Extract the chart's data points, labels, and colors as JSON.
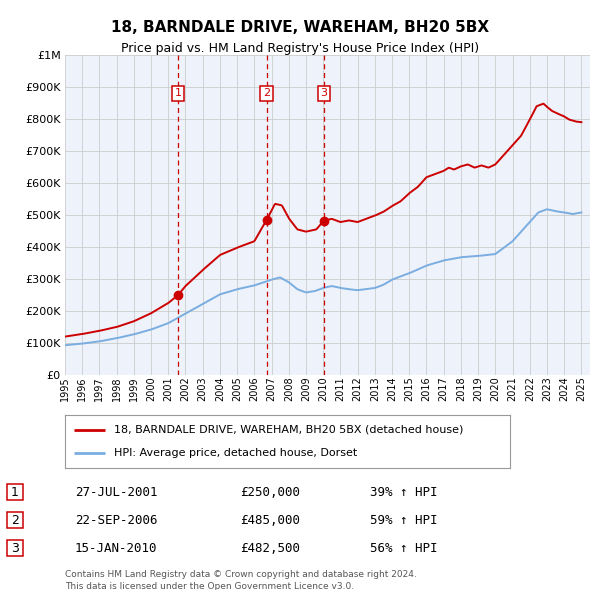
{
  "title": "18, BARNDALE DRIVE, WAREHAM, BH20 5BX",
  "subtitle": "Price paid vs. HM Land Registry's House Price Index (HPI)",
  "legend_line1": "18, BARNDALE DRIVE, WAREHAM, BH20 5BX (detached house)",
  "legend_line2": "HPI: Average price, detached house, Dorset",
  "footnote1": "Contains HM Land Registry data © Crown copyright and database right 2024.",
  "footnote2": "This data is licensed under the Open Government Licence v3.0.",
  "transactions": [
    {
      "num": 1,
      "date": "27-JUL-2001",
      "price": "£250,000",
      "pct": "39% ↑ HPI",
      "year": 2001.57
    },
    {
      "num": 2,
      "date": "22-SEP-2006",
      "price": "£485,000",
      "pct": "59% ↑ HPI",
      "year": 2006.72
    },
    {
      "num": 3,
      "date": "15-JAN-2010",
      "price": "£482,500",
      "pct": "56% ↑ HPI",
      "year": 2010.04
    }
  ],
  "transaction_values": [
    250000,
    485000,
    482500
  ],
  "red_line_color": "#cc0000",
  "blue_line_color": "#7aade0",
  "vline_color": "#cc0000",
  "grid_color": "#cccccc",
  "plot_bg_color": "#eef2fb",
  "ylim": [
    0,
    1000000
  ],
  "yticks": [
    0,
    100000,
    200000,
    300000,
    400000,
    500000,
    600000,
    700000,
    800000,
    900000,
    1000000
  ],
  "xlim_start": 1995.0,
  "xlim_end": 2025.5,
  "xticks": [
    1995,
    1996,
    1997,
    1998,
    1999,
    2000,
    2001,
    2002,
    2003,
    2004,
    2005,
    2006,
    2007,
    2008,
    2009,
    2010,
    2011,
    2012,
    2013,
    2014,
    2015,
    2016,
    2017,
    2018,
    2019,
    2020,
    2021,
    2022,
    2023,
    2024,
    2025
  ],
  "red_anchors": [
    [
      1995.0,
      120000
    ],
    [
      1996.0,
      128000
    ],
    [
      1997.0,
      138000
    ],
    [
      1998.0,
      150000
    ],
    [
      1999.0,
      168000
    ],
    [
      2000.0,
      193000
    ],
    [
      2001.0,
      225000
    ],
    [
      2001.57,
      250000
    ],
    [
      2002.0,
      278000
    ],
    [
      2003.0,
      328000
    ],
    [
      2004.0,
      375000
    ],
    [
      2005.0,
      398000
    ],
    [
      2006.0,
      418000
    ],
    [
      2006.72,
      485000
    ],
    [
      2007.2,
      535000
    ],
    [
      2007.6,
      530000
    ],
    [
      2008.0,
      490000
    ],
    [
      2008.5,
      455000
    ],
    [
      2009.0,
      448000
    ],
    [
      2009.6,
      455000
    ],
    [
      2010.04,
      482500
    ],
    [
      2010.5,
      488000
    ],
    [
      2011.0,
      478000
    ],
    [
      2011.5,
      483000
    ],
    [
      2012.0,
      478000
    ],
    [
      2012.5,
      488000
    ],
    [
      2013.0,
      498000
    ],
    [
      2013.5,
      510000
    ],
    [
      2014.0,
      528000
    ],
    [
      2014.5,
      543000
    ],
    [
      2015.0,
      568000
    ],
    [
      2015.5,
      588000
    ],
    [
      2016.0,
      618000
    ],
    [
      2016.5,
      628000
    ],
    [
      2017.0,
      638000
    ],
    [
      2017.3,
      648000
    ],
    [
      2017.6,
      642000
    ],
    [
      2018.0,
      652000
    ],
    [
      2018.4,
      658000
    ],
    [
      2018.8,
      648000
    ],
    [
      2019.2,
      655000
    ],
    [
      2019.6,
      648000
    ],
    [
      2020.0,
      658000
    ],
    [
      2020.5,
      688000
    ],
    [
      2021.0,
      718000
    ],
    [
      2021.5,
      748000
    ],
    [
      2022.0,
      798000
    ],
    [
      2022.4,
      840000
    ],
    [
      2022.8,
      848000
    ],
    [
      2023.0,
      838000
    ],
    [
      2023.3,
      825000
    ],
    [
      2023.7,
      815000
    ],
    [
      2024.0,
      808000
    ],
    [
      2024.3,
      798000
    ],
    [
      2024.7,
      792000
    ],
    [
      2025.0,
      790000
    ]
  ],
  "blue_anchors": [
    [
      1995.0,
      93000
    ],
    [
      1996.0,
      98000
    ],
    [
      1997.0,
      105000
    ],
    [
      1998.0,
      115000
    ],
    [
      1999.0,
      127000
    ],
    [
      2000.0,
      142000
    ],
    [
      2001.0,
      162000
    ],
    [
      2002.0,
      192000
    ],
    [
      2003.0,
      222000
    ],
    [
      2004.0,
      252000
    ],
    [
      2005.0,
      268000
    ],
    [
      2006.0,
      280000
    ],
    [
      2007.0,
      298000
    ],
    [
      2007.5,
      305000
    ],
    [
      2008.0,
      290000
    ],
    [
      2008.5,
      268000
    ],
    [
      2009.0,
      258000
    ],
    [
      2009.5,
      262000
    ],
    [
      2010.0,
      272000
    ],
    [
      2010.5,
      278000
    ],
    [
      2011.0,
      272000
    ],
    [
      2011.5,
      268000
    ],
    [
      2012.0,
      265000
    ],
    [
      2013.0,
      272000
    ],
    [
      2013.5,
      282000
    ],
    [
      2014.0,
      298000
    ],
    [
      2015.0,
      318000
    ],
    [
      2016.0,
      342000
    ],
    [
      2017.0,
      358000
    ],
    [
      2018.0,
      368000
    ],
    [
      2019.0,
      372000
    ],
    [
      2020.0,
      378000
    ],
    [
      2020.5,
      398000
    ],
    [
      2021.0,
      418000
    ],
    [
      2021.5,
      448000
    ],
    [
      2022.0,
      478000
    ],
    [
      2022.5,
      508000
    ],
    [
      2023.0,
      518000
    ],
    [
      2023.5,
      512000
    ],
    [
      2024.0,
      508000
    ],
    [
      2024.5,
      503000
    ],
    [
      2025.0,
      508000
    ]
  ]
}
